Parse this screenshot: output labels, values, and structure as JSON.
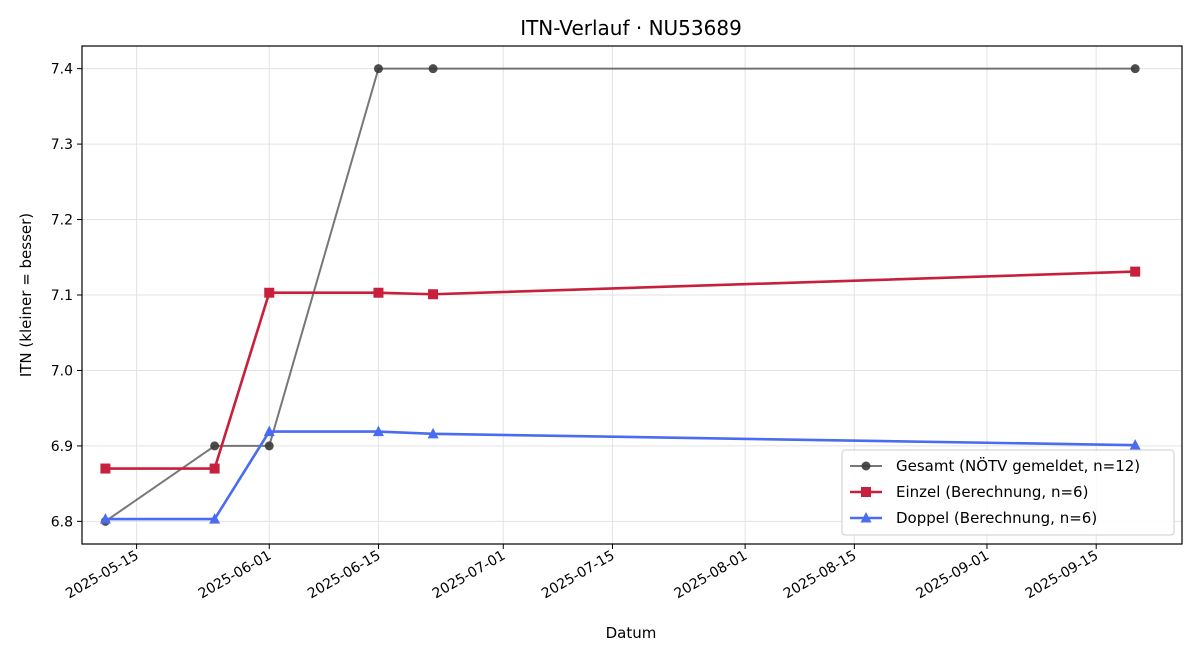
{
  "chart_data": {
    "type": "line",
    "title": "ITN-Verlauf · NU53689",
    "xlabel": "Datum",
    "ylabel": "ITN  (kleiner = besser)",
    "x_ticks": [
      "2025-05-15",
      "2025-06-01",
      "2025-06-15",
      "2025-07-01",
      "2025-07-15",
      "2025-08-01",
      "2025-08-15",
      "2025-09-01",
      "2025-09-15"
    ],
    "y_ticks": [
      "6.8",
      "6.9",
      "7.0",
      "7.1",
      "7.2",
      "7.3",
      "7.4"
    ],
    "xlim": [
      "2025-05-08",
      "2025-09-26"
    ],
    "ylim": [
      6.77,
      7.43
    ],
    "grid": true,
    "legend_position": "lower right",
    "series": [
      {
        "name": "Gesamt (NÖTV gemeldet, n=12)",
        "color": "#555555",
        "marker": "circle",
        "x": [
          "2025-05-11",
          "2025-05-25",
          "2025-06-01",
          "2025-06-15",
          "2025-06-22",
          "2025-09-20"
        ],
        "y": [
          6.8,
          6.9,
          6.9,
          7.4,
          7.4,
          7.4
        ]
      },
      {
        "name": "Einzel (Berechnung, n=6)",
        "color": "#c8203c",
        "marker": "square",
        "x": [
          "2025-05-11",
          "2025-05-25",
          "2025-06-01",
          "2025-06-15",
          "2025-06-22",
          "2025-09-20"
        ],
        "y": [
          6.87,
          6.87,
          7.103,
          7.103,
          7.101,
          7.131
        ]
      },
      {
        "name": "Doppel (Berechnung, n=6)",
        "color": "#4a6cf0",
        "marker": "triangle",
        "x": [
          "2025-05-11",
          "2025-05-25",
          "2025-06-01",
          "2025-06-15",
          "2025-06-22",
          "2025-09-20"
        ],
        "y": [
          6.803,
          6.803,
          6.919,
          6.919,
          6.916,
          6.901
        ]
      }
    ]
  }
}
